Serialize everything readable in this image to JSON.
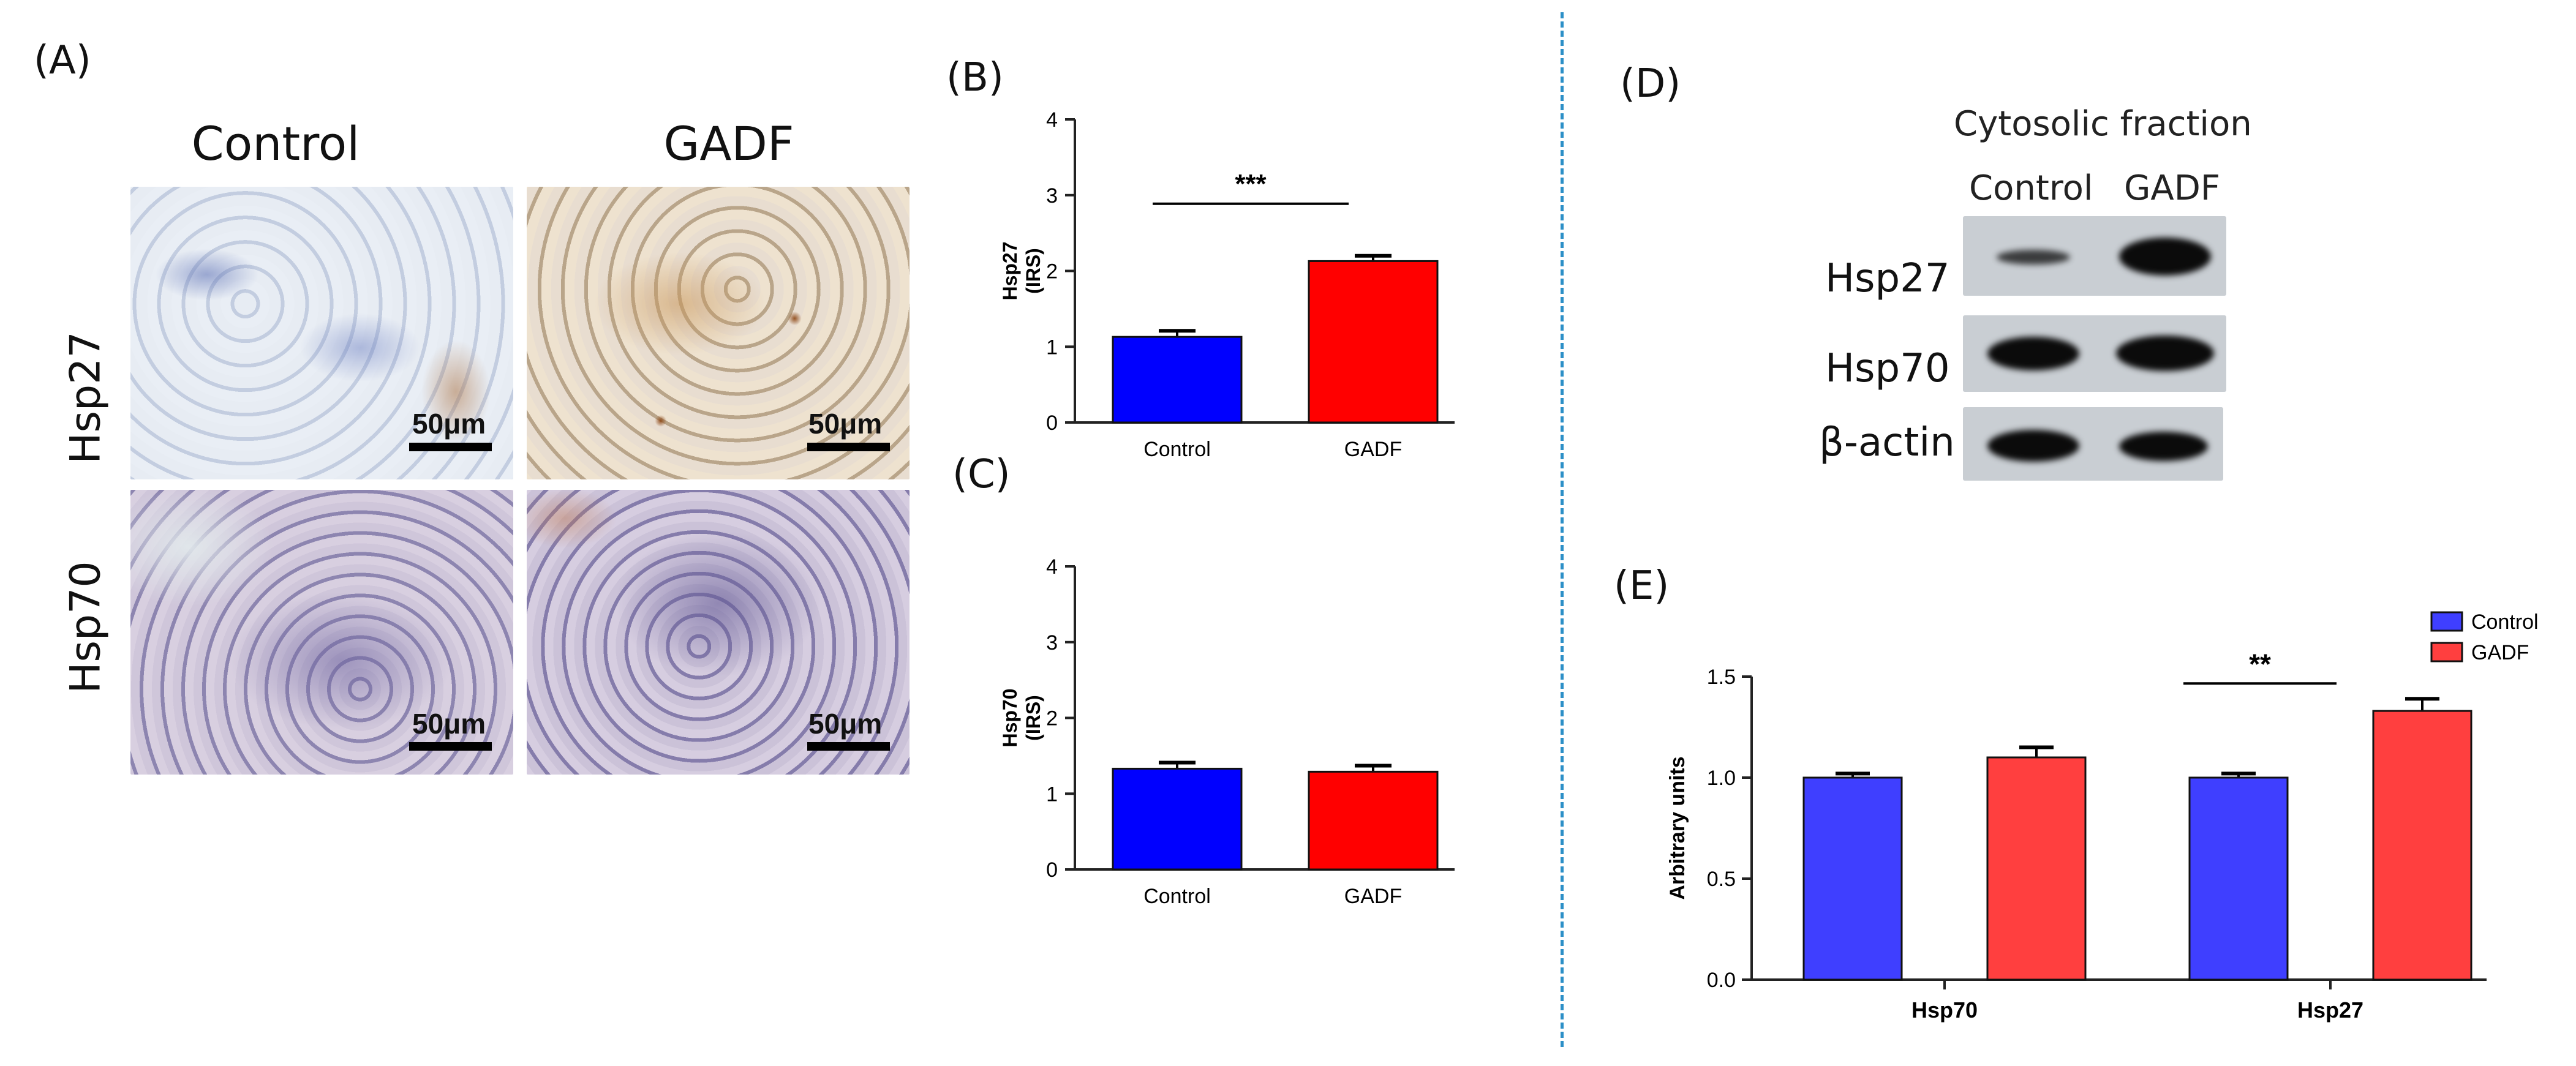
{
  "panels": {
    "a": "(A)",
    "b": "(B)",
    "c": "(C)",
    "d": "(D)",
    "e": "(E)"
  },
  "micrographs": {
    "columns": [
      "Control",
      "GADF"
    ],
    "rows": [
      "Hsp27",
      "Hsp70"
    ],
    "scale_label": "50μm"
  },
  "western_blot": {
    "title": "Cytosolic fraction",
    "lanes": [
      "Control",
      "GADF"
    ],
    "rows": [
      "Hsp27",
      "Hsp70",
      "β-actin"
    ]
  },
  "colors": {
    "control": "#0000ff",
    "gadf": "#ff0000",
    "control_e": "#3f3fff",
    "gadf_e": "#ff3f3f",
    "divider": "#2c8fc7"
  },
  "chart_data": [
    {
      "id": "B",
      "type": "bar",
      "categories": [
        "Control",
        "GADF"
      ],
      "values": [
        1.13,
        2.13
      ],
      "errors": [
        0.08,
        0.07
      ],
      "colors": [
        "#0000ff",
        "#ff0000"
      ],
      "ylabel": "Hsp27\n(IRS)",
      "ylim": [
        0,
        4
      ],
      "yticks": [
        "0",
        "1",
        "2",
        "3",
        "4"
      ],
      "significance": "***"
    },
    {
      "id": "C",
      "type": "bar",
      "categories": [
        "Control",
        "GADF"
      ],
      "values": [
        1.33,
        1.29
      ],
      "errors": [
        0.08,
        0.08
      ],
      "colors": [
        "#0000ff",
        "#ff0000"
      ],
      "ylabel": "Hsp70\n(IRS)",
      "ylim": [
        0,
        4
      ],
      "yticks": [
        "0",
        "1",
        "2",
        "3",
        "4"
      ],
      "significance": ""
    },
    {
      "id": "E",
      "type": "bar",
      "categories": [
        "Hsp70",
        "Hsp27"
      ],
      "series": [
        {
          "name": "Control",
          "values": [
            1.0,
            1.0
          ],
          "errors": [
            0.02,
            0.02
          ],
          "color": "#3f3fff"
        },
        {
          "name": "GADF",
          "values": [
            1.1,
            1.33
          ],
          "errors": [
            0.05,
            0.06
          ],
          "color": "#ff3f3f"
        }
      ],
      "ylabel": "Arbitrary units",
      "ylim": [
        0,
        1.5
      ],
      "yticks": [
        "0.0",
        "0.5",
        "1.0",
        "1.5"
      ],
      "significance": "**",
      "legend": "top-right"
    }
  ]
}
